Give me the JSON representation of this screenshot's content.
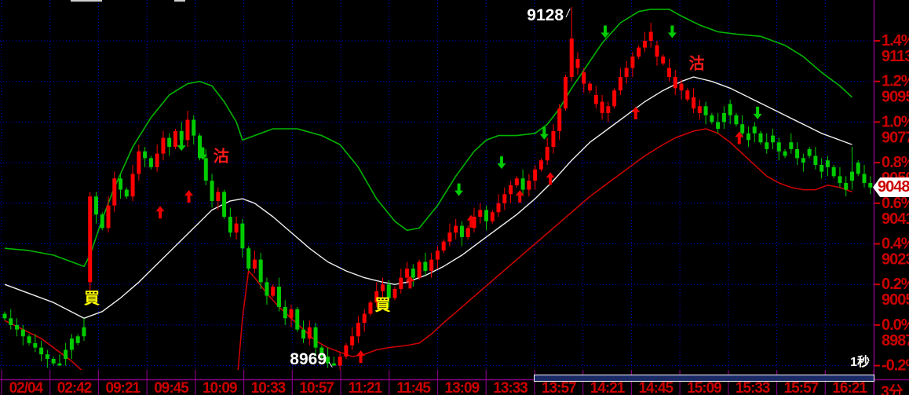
{
  "window": {
    "background": "#000000"
  },
  "colors": {
    "up_candle": "#ff0000",
    "down_candle": "#00cc00",
    "upper_band": "#00b400",
    "middle_band": "#f0f0f0",
    "lower_band": "#d20000",
    "grid": "#0000dd",
    "axis_line": "#800080",
    "axis_label_red": "#cc0000",
    "buy_label_yellow": "#ffff00",
    "sell_label_red": "#ff1a1a",
    "annotation_white": "#ffffff",
    "up_arrow": "#ee0000",
    "down_arrow": "#00cc00",
    "scrollbar_fill": "#1a2a66"
  },
  "chart_data": {
    "type": "candlestick",
    "interval_label": "3分",
    "refresh_rate_label": "1秒",
    "y_axis": {
      "side": "right",
      "percent_ticks": [
        "1.4%",
        "1.2%",
        "1.0%",
        "0.8%",
        "0.6%",
        "0.4%",
        "0.2%",
        "0.0%",
        "-0.2%"
      ],
      "price_ticks": [
        9113,
        9095,
        9077,
        9059,
        9041,
        9023,
        9005,
        8987
      ],
      "base_price": 8987,
      "points_per_tick": 18,
      "current_price": "9048",
      "range_pct": [
        -0.3,
        1.55
      ]
    },
    "x_axis": {
      "time_labels": [
        "02/04",
        "02:42",
        "09:21",
        "09:45",
        "10:09",
        "10:33",
        "10:57",
        "11:21",
        "11:45",
        "13:09",
        "13:33",
        "13:57",
        "14:21",
        "14:45",
        "15:09",
        "15:33",
        "15:57",
        "16:21"
      ],
      "grid": true
    },
    "annotations": {
      "session_high": {
        "text": "9128",
        "bar": 93,
        "price": 9128
      },
      "session_low": {
        "text": "8969",
        "bar": 54,
        "price": 8969
      }
    },
    "candles": {
      "closes": [
        8990,
        8987,
        8985,
        8982,
        8979,
        8977,
        8974,
        8972,
        8970,
        8969,
        8972,
        8976,
        8979,
        8982,
        9044,
        9036,
        9030,
        9040,
        9052,
        9047,
        9044,
        9054,
        9064,
        9061,
        9057,
        9063,
        9070,
        9066,
        9073,
        9069,
        9078,
        9071,
        9061,
        9051,
        9042,
        9046,
        9035,
        9028,
        9032,
        9021,
        9012,
        9016,
        9006,
        9000,
        9004,
        8995,
        8990,
        8994,
        8985,
        8981,
        8986,
        8977,
        8973,
        8970,
        8969,
        8973,
        8978,
        8982,
        8988,
        8992,
        8997,
        9002,
        9005,
        8999,
        9003,
        9008,
        9012,
        9008,
        9015,
        9011,
        9016,
        9020,
        9024,
        9028,
        9031,
        9026,
        9030,
        9035,
        9038,
        9033,
        9037,
        9041,
        9045,
        9049,
        9052,
        9047,
        9051,
        9056,
        9060,
        9066,
        9073,
        9083,
        9097,
        9114,
        9105,
        9099,
        9094,
        9089,
        9086,
        9084,
        9091,
        9097,
        9101,
        9106,
        9110,
        9113,
        9117,
        9111,
        9106,
        9101,
        9097,
        9094,
        9091,
        9088,
        9084,
        9080,
        9077,
        9074,
        9077,
        9080,
        9076,
        9072,
        9069,
        9072,
        9068,
        9065,
        9068,
        9064,
        9062,
        9065,
        9061,
        9059,
        9062,
        9058,
        9055,
        9057,
        9053,
        9050,
        9047,
        9051,
        9054,
        9050,
        9048
      ],
      "open_overrides": {
        "0": 8992,
        "14": 9006
      },
      "high_overrides": {
        "14": 9046,
        "30": 9082,
        "93": 9128,
        "106": 9121,
        "139": 9066
      },
      "low_overrides": {
        "9": 8969,
        "14": 9002,
        "54": 8969
      },
      "force_red": [
        94,
        95,
        96,
        97,
        98,
        99,
        107,
        108,
        109,
        110,
        111,
        112,
        113,
        114
      ],
      "force_green": [
        10,
        11,
        12,
        13,
        116,
        117,
        118,
        119,
        120,
        121,
        122,
        123,
        124,
        125,
        126,
        127,
        128,
        129,
        130,
        131,
        132,
        133,
        134,
        135,
        136,
        137,
        138,
        139,
        140,
        141
      ]
    },
    "bands": {
      "upper": [
        [
          0,
          9021
        ],
        [
          4,
          9020
        ],
        [
          8,
          9018
        ],
        [
          13,
          9013
        ],
        [
          14,
          9018
        ],
        [
          16,
          9034
        ],
        [
          18,
          9048
        ],
        [
          21,
          9066
        ],
        [
          24,
          9079
        ],
        [
          27,
          9089
        ],
        [
          30,
          9094
        ],
        [
          32,
          9095
        ],
        [
          34,
          9093
        ],
        [
          36,
          9086
        ],
        [
          38,
          9077
        ],
        [
          39,
          9069
        ],
        [
          41,
          9071
        ],
        [
          44,
          9074
        ],
        [
          48,
          9074
        ],
        [
          52,
          9071
        ],
        [
          55,
          9067
        ],
        [
          58,
          9057
        ],
        [
          61,
          9043
        ],
        [
          64,
          9033
        ],
        [
          66,
          9029
        ],
        [
          68,
          9030
        ],
        [
          71,
          9040
        ],
        [
          74,
          9053
        ],
        [
          77,
          9064
        ],
        [
          79,
          9069
        ],
        [
          81,
          9071
        ],
        [
          84,
          9071
        ],
        [
          87,
          9072
        ],
        [
          89,
          9076
        ],
        [
          91,
          9083
        ],
        [
          93,
          9092
        ],
        [
          95,
          9100
        ],
        [
          98,
          9112
        ],
        [
          101,
          9121
        ],
        [
          104,
          9126
        ],
        [
          106,
          9127
        ],
        [
          109,
          9127
        ],
        [
          111,
          9124
        ],
        [
          114,
          9120
        ],
        [
          117,
          9117
        ],
        [
          120,
          9116
        ],
        [
          124,
          9115
        ],
        [
          128,
          9111
        ],
        [
          131,
          9106
        ],
        [
          134,
          9099
        ],
        [
          137,
          9093
        ],
        [
          139,
          9088
        ]
      ],
      "middle": [
        [
          0,
          9005
        ],
        [
          4,
          9001
        ],
        [
          8,
          8997
        ],
        [
          13,
          8990
        ],
        [
          16,
          8993
        ],
        [
          19,
          8999
        ],
        [
          22,
          9006
        ],
        [
          25,
          9014
        ],
        [
          28,
          9022
        ],
        [
          31,
          9030
        ],
        [
          34,
          9038
        ],
        [
          37,
          9042
        ],
        [
          39,
          9043
        ],
        [
          41,
          9041
        ],
        [
          44,
          9035
        ],
        [
          47,
          9028
        ],
        [
          50,
          9021
        ],
        [
          53,
          9015
        ],
        [
          56,
          9011
        ],
        [
          59,
          9008
        ],
        [
          62,
          9006
        ],
        [
          64,
          9005
        ],
        [
          66,
          9006
        ],
        [
          69,
          9009
        ],
        [
          72,
          9013
        ],
        [
          75,
          9018
        ],
        [
          78,
          9024
        ],
        [
          81,
          9030
        ],
        [
          84,
          9036
        ],
        [
          87,
          9043
        ],
        [
          90,
          9051
        ],
        [
          93,
          9060
        ],
        [
          96,
          9068
        ],
        [
          99,
          9074
        ],
        [
          102,
          9080
        ],
        [
          105,
          9086
        ],
        [
          108,
          9091
        ],
        [
          111,
          9095
        ],
        [
          113,
          9097
        ],
        [
          116,
          9095
        ],
        [
          119,
          9092
        ],
        [
          122,
          9088
        ],
        [
          125,
          9084
        ],
        [
          128,
          9080
        ],
        [
          131,
          9076
        ],
        [
          134,
          9072
        ],
        [
          137,
          9069
        ],
        [
          139,
          9067
        ]
      ],
      "lower_segments": [
        [
          [
            0,
            8989
          ],
          [
            3,
            8985
          ],
          [
            6,
            8981
          ],
          [
            9,
            8975
          ],
          [
            11,
            8971
          ],
          [
            13,
            8966
          ]
        ],
        [
          [
            38,
            8958
          ],
          [
            39,
            8990
          ],
          [
            40,
            9011
          ],
          [
            41,
            9008
          ],
          [
            43,
            9001
          ],
          [
            45,
            8995
          ],
          [
            47,
            8990
          ],
          [
            49,
            8985
          ],
          [
            51,
            8980
          ],
          [
            53,
            8977
          ],
          [
            55,
            8975
          ],
          [
            57,
            8973
          ],
          [
            59,
            8974
          ],
          [
            61,
            8976
          ],
          [
            63,
            8977
          ],
          [
            66,
            8978
          ],
          [
            68,
            8979
          ],
          [
            70,
            8983
          ],
          [
            72,
            8988
          ],
          [
            75,
            8995
          ],
          [
            78,
            9002
          ],
          [
            81,
            9009
          ],
          [
            84,
            9016
          ],
          [
            87,
            9023
          ],
          [
            90,
            9030
          ],
          [
            93,
            9037
          ],
          [
            96,
            9044
          ],
          [
            99,
            9050
          ],
          [
            102,
            9056
          ],
          [
            105,
            9062
          ],
          [
            108,
            9067
          ],
          [
            110,
            9070
          ],
          [
            113,
            9073
          ],
          [
            115,
            9074
          ],
          [
            117,
            9072
          ],
          [
            119,
            9068
          ],
          [
            121,
            9063
          ],
          [
            123,
            9058
          ],
          [
            125,
            9053
          ],
          [
            127,
            9050
          ],
          [
            129,
            9048
          ],
          [
            131,
            9047
          ],
          [
            133,
            9047
          ],
          [
            135,
            9049
          ],
          [
            137,
            9048
          ],
          [
            139,
            9046
          ]
        ]
      ]
    },
    "signals": {
      "buy_labels": [
        {
          "i": 14.3,
          "price": 8999,
          "text": "買"
        },
        {
          "i": 62.0,
          "price": 8996,
          "text": "買"
        }
      ],
      "sell_labels": [
        {
          "i": 35.5,
          "price": 9062,
          "text": "沽"
        },
        {
          "i": 113.5,
          "price": 9103,
          "text": "沽"
        }
      ],
      "up_arrows": [
        {
          "i": 25.5,
          "price": 9037
        },
        {
          "i": 30.2,
          "price": 9044
        },
        {
          "i": 58.4,
          "price": 8973
        },
        {
          "i": 66.5,
          "price": 9006
        },
        {
          "i": 76.5,
          "price": 9033
        },
        {
          "i": 84.5,
          "price": 9044
        },
        {
          "i": 89.5,
          "price": 9052
        },
        {
          "i": 103.5,
          "price": 9081
        },
        {
          "i": 120.5,
          "price": 9070
        }
      ],
      "down_arrows": [
        {
          "i": 29.0,
          "price": 9067
        },
        {
          "i": 32.5,
          "price": 9063
        },
        {
          "i": 74.5,
          "price": 9047
        },
        {
          "i": 81.5,
          "price": 9059
        },
        {
          "i": 88.5,
          "price": 9072
        },
        {
          "i": 98.5,
          "price": 9117
        },
        {
          "i": 109.5,
          "price": 9117
        },
        {
          "i": 123.5,
          "price": 9081
        }
      ]
    }
  }
}
